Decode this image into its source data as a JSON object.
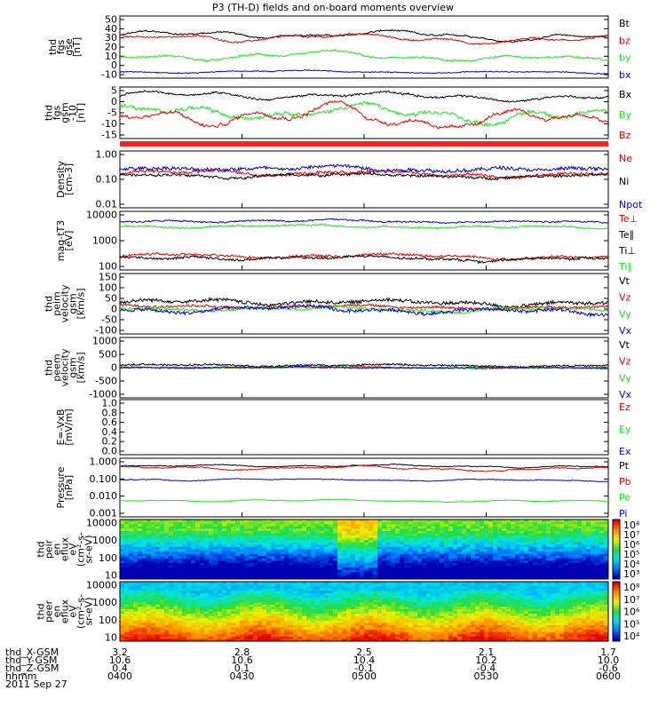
{
  "title": "P3 (TH-D) fields and on-board moments overview",
  "colors": {
    "black": "#000000",
    "red": "#e00000",
    "green": "#22dd22",
    "blue": "#0000cc",
    "bar_red": "#ff2020"
  },
  "chart_data": [
    {
      "type": "line",
      "panel": "fgs_gse",
      "ylabel_lines": [
        "thd",
        "fgs",
        "gse",
        "[nT]"
      ],
      "yticks": [
        "50",
        "40",
        "30",
        "20",
        "10",
        "0",
        "-10"
      ],
      "ylim": [
        -10,
        50
      ],
      "legend": [
        "Bt",
        "bz",
        "by",
        "bx"
      ],
      "series": [
        {
          "name": "Bt",
          "color": "black",
          "base": 31,
          "amp": 5,
          "noise": 1.2
        },
        {
          "name": "bz",
          "color": "red",
          "base": 28,
          "amp": 5,
          "noise": 1.2
        },
        {
          "name": "by",
          "color": "green",
          "base": 10,
          "amp": 5,
          "noise": 1.5
        },
        {
          "name": "bx",
          "color": "blue",
          "base": -4,
          "amp": 1.5,
          "noise": 0.8
        }
      ]
    },
    {
      "type": "line",
      "panel": "fgs_gsm",
      "ylabel_lines": [
        "thd",
        "fgs",
        "gsm",
        "-10",
        "[nT]"
      ],
      "yticks": [
        "5",
        "0",
        "-5",
        "-10",
        "-15"
      ],
      "ylim": [
        -18,
        7
      ],
      "legend": [
        "Bx",
        "By",
        "Bz"
      ],
      "series": [
        {
          "name": "Bx",
          "color": "black",
          "base": 2.5,
          "amp": 2.5,
          "noise": 0.8
        },
        {
          "name": "By",
          "color": "green",
          "base": -6,
          "amp": 5,
          "noise": 1.5
        },
        {
          "name": "Bz",
          "color": "red",
          "base": -8,
          "amp": 7,
          "noise": 1
        }
      ]
    },
    {
      "type": "line",
      "panel": "density",
      "log": true,
      "ylabel_lines": [
        "Density",
        "[cm-3]"
      ],
      "yticks": [
        "1.00",
        "0.10",
        "0.01"
      ],
      "ylim": [
        0.01,
        3
      ],
      "legend": [
        "Ne",
        "Ni",
        "Npot"
      ],
      "series": [
        {
          "name": "Ne",
          "color": "red",
          "base": 0.3,
          "amp": 0.15,
          "noise": 0.12
        },
        {
          "name": "Ni",
          "color": "black",
          "base": 0.25,
          "amp": 0.1,
          "noise": 0.1
        },
        {
          "name": "Npot",
          "color": "blue",
          "base": 0.5,
          "amp": 0.2,
          "noise": 0.15
        }
      ]
    },
    {
      "type": "line",
      "panel": "temperature",
      "log": true,
      "ylabel_lines": [
        "mag-tT3",
        "[eV]"
      ],
      "yticks": [
        "10000",
        "1000",
        "100"
      ],
      "ylim": [
        30,
        15000
      ],
      "legend": [
        "Te⊥",
        "Te∥",
        "Ti⊥",
        "Ti∥"
      ],
      "series": [
        {
          "name": "Te⊥",
          "color": "red",
          "base": 130,
          "amp": 50,
          "noise": 0.1
        },
        {
          "name": "Te∥",
          "color": "black",
          "base": 100,
          "amp": 40,
          "noise": 0.1
        },
        {
          "name": "Ti⊥",
          "color": "blue",
          "base": 5000,
          "amp": 1500,
          "noise": 0.06
        },
        {
          "name": "Ti∥",
          "color": "green",
          "base": 3000,
          "amp": 800,
          "noise": 0.06
        }
      ]
    },
    {
      "type": "line",
      "panel": "peim_velocity",
      "ylabel_lines": [
        "thd",
        "peim",
        "velocity",
        "gsm",
        "[km/s]"
      ],
      "yticks": [
        "150",
        "100",
        "50",
        "0",
        "-50",
        "-100"
      ],
      "ylim": [
        -110,
        160
      ],
      "legend": [
        "Vt",
        "Vz",
        "Vy",
        "Vx"
      ],
      "series": [
        {
          "name": "Vt",
          "color": "black",
          "base": 30,
          "amp": 15,
          "noise": 15
        },
        {
          "name": "Vz",
          "color": "red",
          "base": 10,
          "amp": 10,
          "noise": 10
        },
        {
          "name": "Vy",
          "color": "green",
          "base": 0,
          "amp": 15,
          "noise": 12
        },
        {
          "name": "Vx",
          "color": "blue",
          "base": -5,
          "amp": 20,
          "noise": 15
        }
      ]
    },
    {
      "type": "line",
      "panel": "peem_velocity",
      "ylabel_lines": [
        "thd",
        "peem",
        "velocity",
        "gsm",
        "[km/s]"
      ],
      "yticks": [
        "1000",
        "500",
        "0",
        "-500",
        "-1000"
      ],
      "ylim": [
        -1100,
        1100
      ],
      "legend": [
        "Vt",
        "Vz",
        "Vy",
        "Vx"
      ],
      "series": [
        {
          "name": "Vt",
          "color": "black",
          "base": 80,
          "amp": 50,
          "noise": 60
        },
        {
          "name": "Vz",
          "color": "red",
          "base": 0,
          "amp": 30,
          "noise": 40
        },
        {
          "name": "Vy",
          "color": "green",
          "base": 0,
          "amp": 30,
          "noise": 40
        },
        {
          "name": "Vx",
          "color": "blue",
          "base": 0,
          "amp": 30,
          "noise": 40
        }
      ]
    },
    {
      "type": "line",
      "panel": "efield",
      "ylabel_lines": [
        "E=-VxB",
        "[mV/m]"
      ],
      "yticks": [
        "1.0",
        "0.8",
        "0.6",
        "0.4",
        "0.2",
        "0.0"
      ],
      "ylim": [
        0,
        1
      ],
      "legend": [
        "Ez",
        "Ey",
        "Ex"
      ],
      "series": []
    },
    {
      "type": "line",
      "panel": "pressure",
      "log": true,
      "ylabel_lines": [
        "Pressure",
        "[nPa]"
      ],
      "yticks": [
        "1.000",
        "0.100",
        "0.010",
        "0.001"
      ],
      "ylim": [
        0.001,
        2
      ],
      "legend": [
        "Pt",
        "Pb",
        "Pe",
        "Pi"
      ],
      "series": [
        {
          "name": "Pt",
          "color": "black",
          "base": 0.7,
          "amp": 0.2,
          "noise": 0.03
        },
        {
          "name": "Pb",
          "color": "red",
          "base": 0.55,
          "amp": 0.25,
          "noise": 0.03
        },
        {
          "name": "Pe",
          "color": "green",
          "base": 0.008,
          "amp": 0.002,
          "noise": 0.03
        },
        {
          "name": "Pi",
          "color": "blue",
          "base": 0.12,
          "amp": 0.03,
          "noise": 0.03
        }
      ]
    },
    {
      "type": "heatmap",
      "panel": "peir_spectrogram",
      "ylabel_lines": [
        "thd",
        "peir",
        "en",
        "eflux",
        "eV",
        "(cm²-s-",
        "sr-eV)"
      ],
      "yticks": [
        "10000",
        "1000",
        "100",
        "10"
      ],
      "colorbar_ticks": [
        "10⁸",
        "10⁷",
        "10⁶",
        "10⁵",
        "10⁴",
        "10³"
      ]
    },
    {
      "type": "heatmap",
      "panel": "peer_spectrogram",
      "ylabel_lines": [
        "thd",
        "peer",
        "en",
        "eflux",
        "eV",
        "(cm²-s-",
        "sr-eV)"
      ],
      "yticks": [
        "10000",
        "1000",
        "100",
        "10"
      ],
      "colorbar_ticks": [
        "10⁸",
        "10⁷",
        "10⁶",
        "10⁵",
        "10⁴"
      ]
    }
  ],
  "footer": {
    "row_labels": [
      "thd_X-GSM",
      "thd_Y-GSM",
      "thd_Z-GSM",
      "hhmm"
    ],
    "date": "2011 Sep 27",
    "columns": [
      [
        "3.2",
        "10.6",
        "0.4",
        "0400"
      ],
      [
        "2.8",
        "10.6",
        "0.1",
        "0430"
      ],
      [
        "2.5",
        "10.4",
        "-0.1",
        "0500"
      ],
      [
        "2.1",
        "10.2",
        "-0.4",
        "0530"
      ],
      [
        "1.7",
        "10.0",
        "-0.6",
        "0600"
      ]
    ]
  }
}
